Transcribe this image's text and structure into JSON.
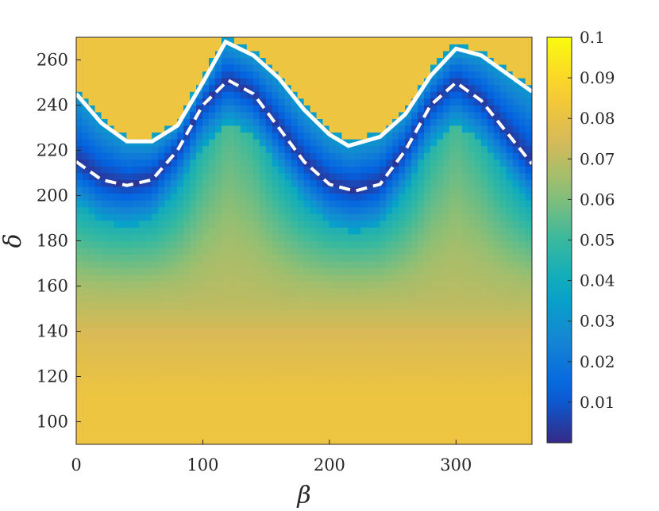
{
  "chart_data": {
    "type": "heatmap",
    "title": "",
    "xlabel": "β",
    "ylabel": "δ",
    "xlim": [
      0,
      360
    ],
    "ylim": [
      90,
      270
    ],
    "x_ticks": [
      0,
      100,
      200,
      300
    ],
    "y_ticks": [
      100,
      120,
      140,
      160,
      180,
      200,
      220,
      240,
      260
    ],
    "colorbar": {
      "colormap": "parula",
      "range": [
        0,
        0.1
      ],
      "ticks": [
        0.01,
        0.02,
        0.03,
        0.04,
        0.05,
        0.06,
        0.07,
        0.08,
        0.09,
        0.1
      ],
      "tick_labels": [
        "0.01",
        "0.02",
        "0.03",
        "0.04",
        "0.05",
        "0.06",
        "0.07",
        "0.08",
        "0.09",
        "0.1"
      ]
    },
    "dashed_curve": {
      "color": "#ffffff",
      "style": "dashed",
      "points": [
        [
          0,
          215
        ],
        [
          20,
          207
        ],
        [
          40,
          204.5
        ],
        [
          60,
          207
        ],
        [
          80,
          220
        ],
        [
          100,
          240
        ],
        [
          120,
          251
        ],
        [
          140,
          245
        ],
        [
          160,
          230
        ],
        [
          180,
          215
        ],
        [
          200,
          205
        ],
        [
          220,
          202
        ],
        [
          240,
          205
        ],
        [
          260,
          220
        ],
        [
          280,
          240
        ],
        [
          300,
          250
        ],
        [
          320,
          242
        ],
        [
          340,
          228
        ],
        [
          360,
          214
        ]
      ]
    },
    "white_boundary_curve": {
      "color": "#ffffff",
      "points": [
        [
          0,
          245
        ],
        [
          20,
          232
        ],
        [
          40,
          224
        ],
        [
          60,
          224
        ],
        [
          80,
          231
        ],
        [
          100,
          250
        ],
        [
          118,
          268
        ],
        [
          140,
          262
        ],
        [
          160,
          252
        ],
        [
          180,
          238
        ],
        [
          200,
          227
        ],
        [
          215,
          222
        ],
        [
          240,
          226
        ],
        [
          260,
          236
        ],
        [
          280,
          253
        ],
        [
          300,
          265
        ],
        [
          320,
          262
        ],
        [
          340,
          254
        ],
        [
          360,
          246
        ]
      ]
    },
    "field": {
      "description_levels_by_delta": [
        [
          90,
          0.082
        ],
        [
          110,
          0.082
        ],
        [
          120,
          0.08
        ],
        [
          140,
          0.075
        ],
        [
          160,
          0.066
        ],
        [
          180,
          0.052
        ],
        [
          200,
          0.035
        ],
        [
          215,
          0.015
        ]
      ]
    }
  }
}
